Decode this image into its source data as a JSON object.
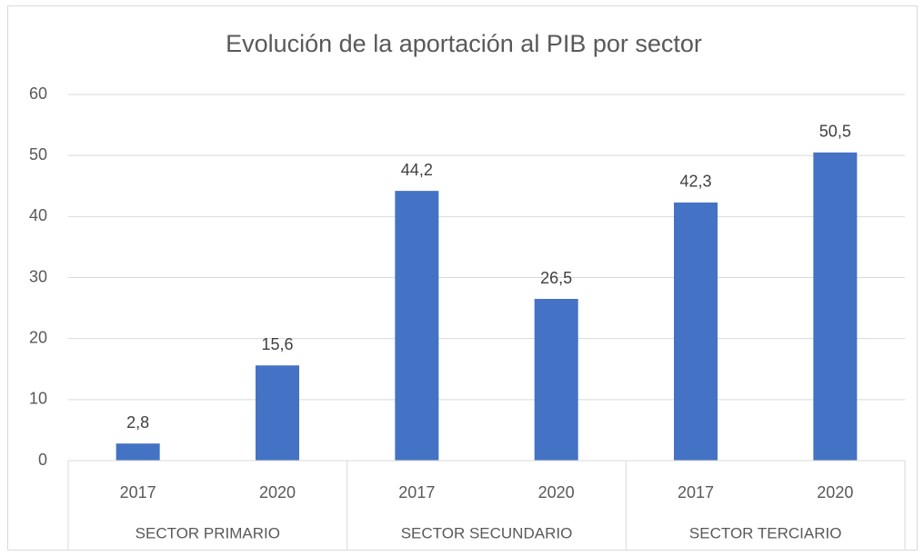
{
  "chart_data": {
    "type": "bar",
    "title": "Evolución de la aportación al PIB por sector",
    "categories": [
      "2017",
      "2020",
      "2017",
      "2020",
      "2017",
      "2020"
    ],
    "category_groups": [
      "SECTOR PRIMARIO",
      "SECTOR SECUNDARIO",
      "SECTOR TERCIARIO"
    ],
    "values": [
      2.8,
      15.6,
      44.2,
      26.5,
      42.3,
      50.5
    ],
    "value_labels": [
      "2,8",
      "15,6",
      "44,2",
      "26,5",
      "42,3",
      "50,5"
    ],
    "color": "#4472c4",
    "ylim": [
      0,
      60
    ],
    "yticks": [
      0,
      10,
      20,
      30,
      40,
      50,
      60
    ],
    "grid": true
  }
}
